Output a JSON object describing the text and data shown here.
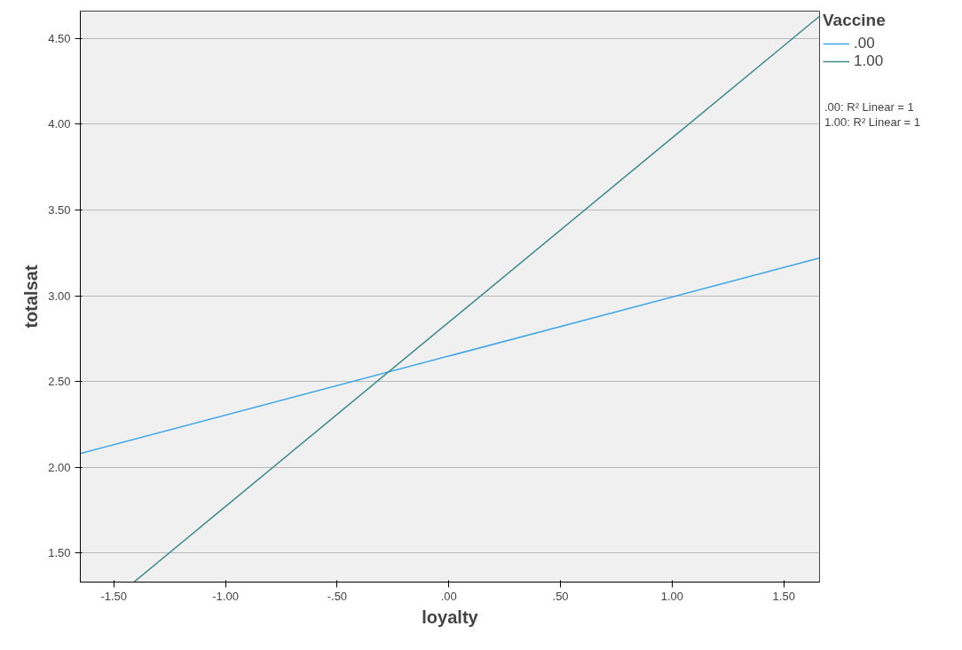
{
  "chart_data": {
    "type": "line",
    "xlabel": "loyalty",
    "ylabel": "totalsat",
    "legend_title": "Vaccine",
    "xlim": [
      -1.65,
      1.66
    ],
    "ylim": [
      1.33,
      4.66
    ],
    "xticks": [
      {
        "value": -1.5,
        "label": "-1.50"
      },
      {
        "value": -1.0,
        "label": "-1.00"
      },
      {
        "value": -0.5,
        "label": "-.50"
      },
      {
        "value": 0,
        "label": ".00"
      },
      {
        "value": 0.5,
        "label": ".50"
      },
      {
        "value": 1.0,
        "label": "1.00"
      },
      {
        "value": 1.5,
        "label": "1.50"
      }
    ],
    "yticks": [
      {
        "value": 1.5,
        "label": "1.50"
      },
      {
        "value": 2.0,
        "label": "2.00"
      },
      {
        "value": 2.5,
        "label": "2.50"
      },
      {
        "value": 3.0,
        "label": "3.00"
      },
      {
        "value": 3.5,
        "label": "3.50"
      },
      {
        "value": 4.0,
        "label": "4.00"
      },
      {
        "value": 4.5,
        "label": "4.50"
      }
    ],
    "series": [
      {
        "name": ".00",
        "color": "#3ba6ea",
        "x": [
          -1.65,
          1.66
        ],
        "values": [
          2.08,
          3.22
        ]
      },
      {
        "name": "1.00",
        "color": "#3d8b8b",
        "x": [
          -1.41,
          1.66
        ],
        "values": [
          1.33,
          4.63
        ]
      }
    ],
    "annotations": [
      ".00: R² Linear = 1",
      "1.00: R² Linear = 1"
    ],
    "grid": "y",
    "legend": "top right",
    "marker": "none",
    "line_style": "solid"
  }
}
